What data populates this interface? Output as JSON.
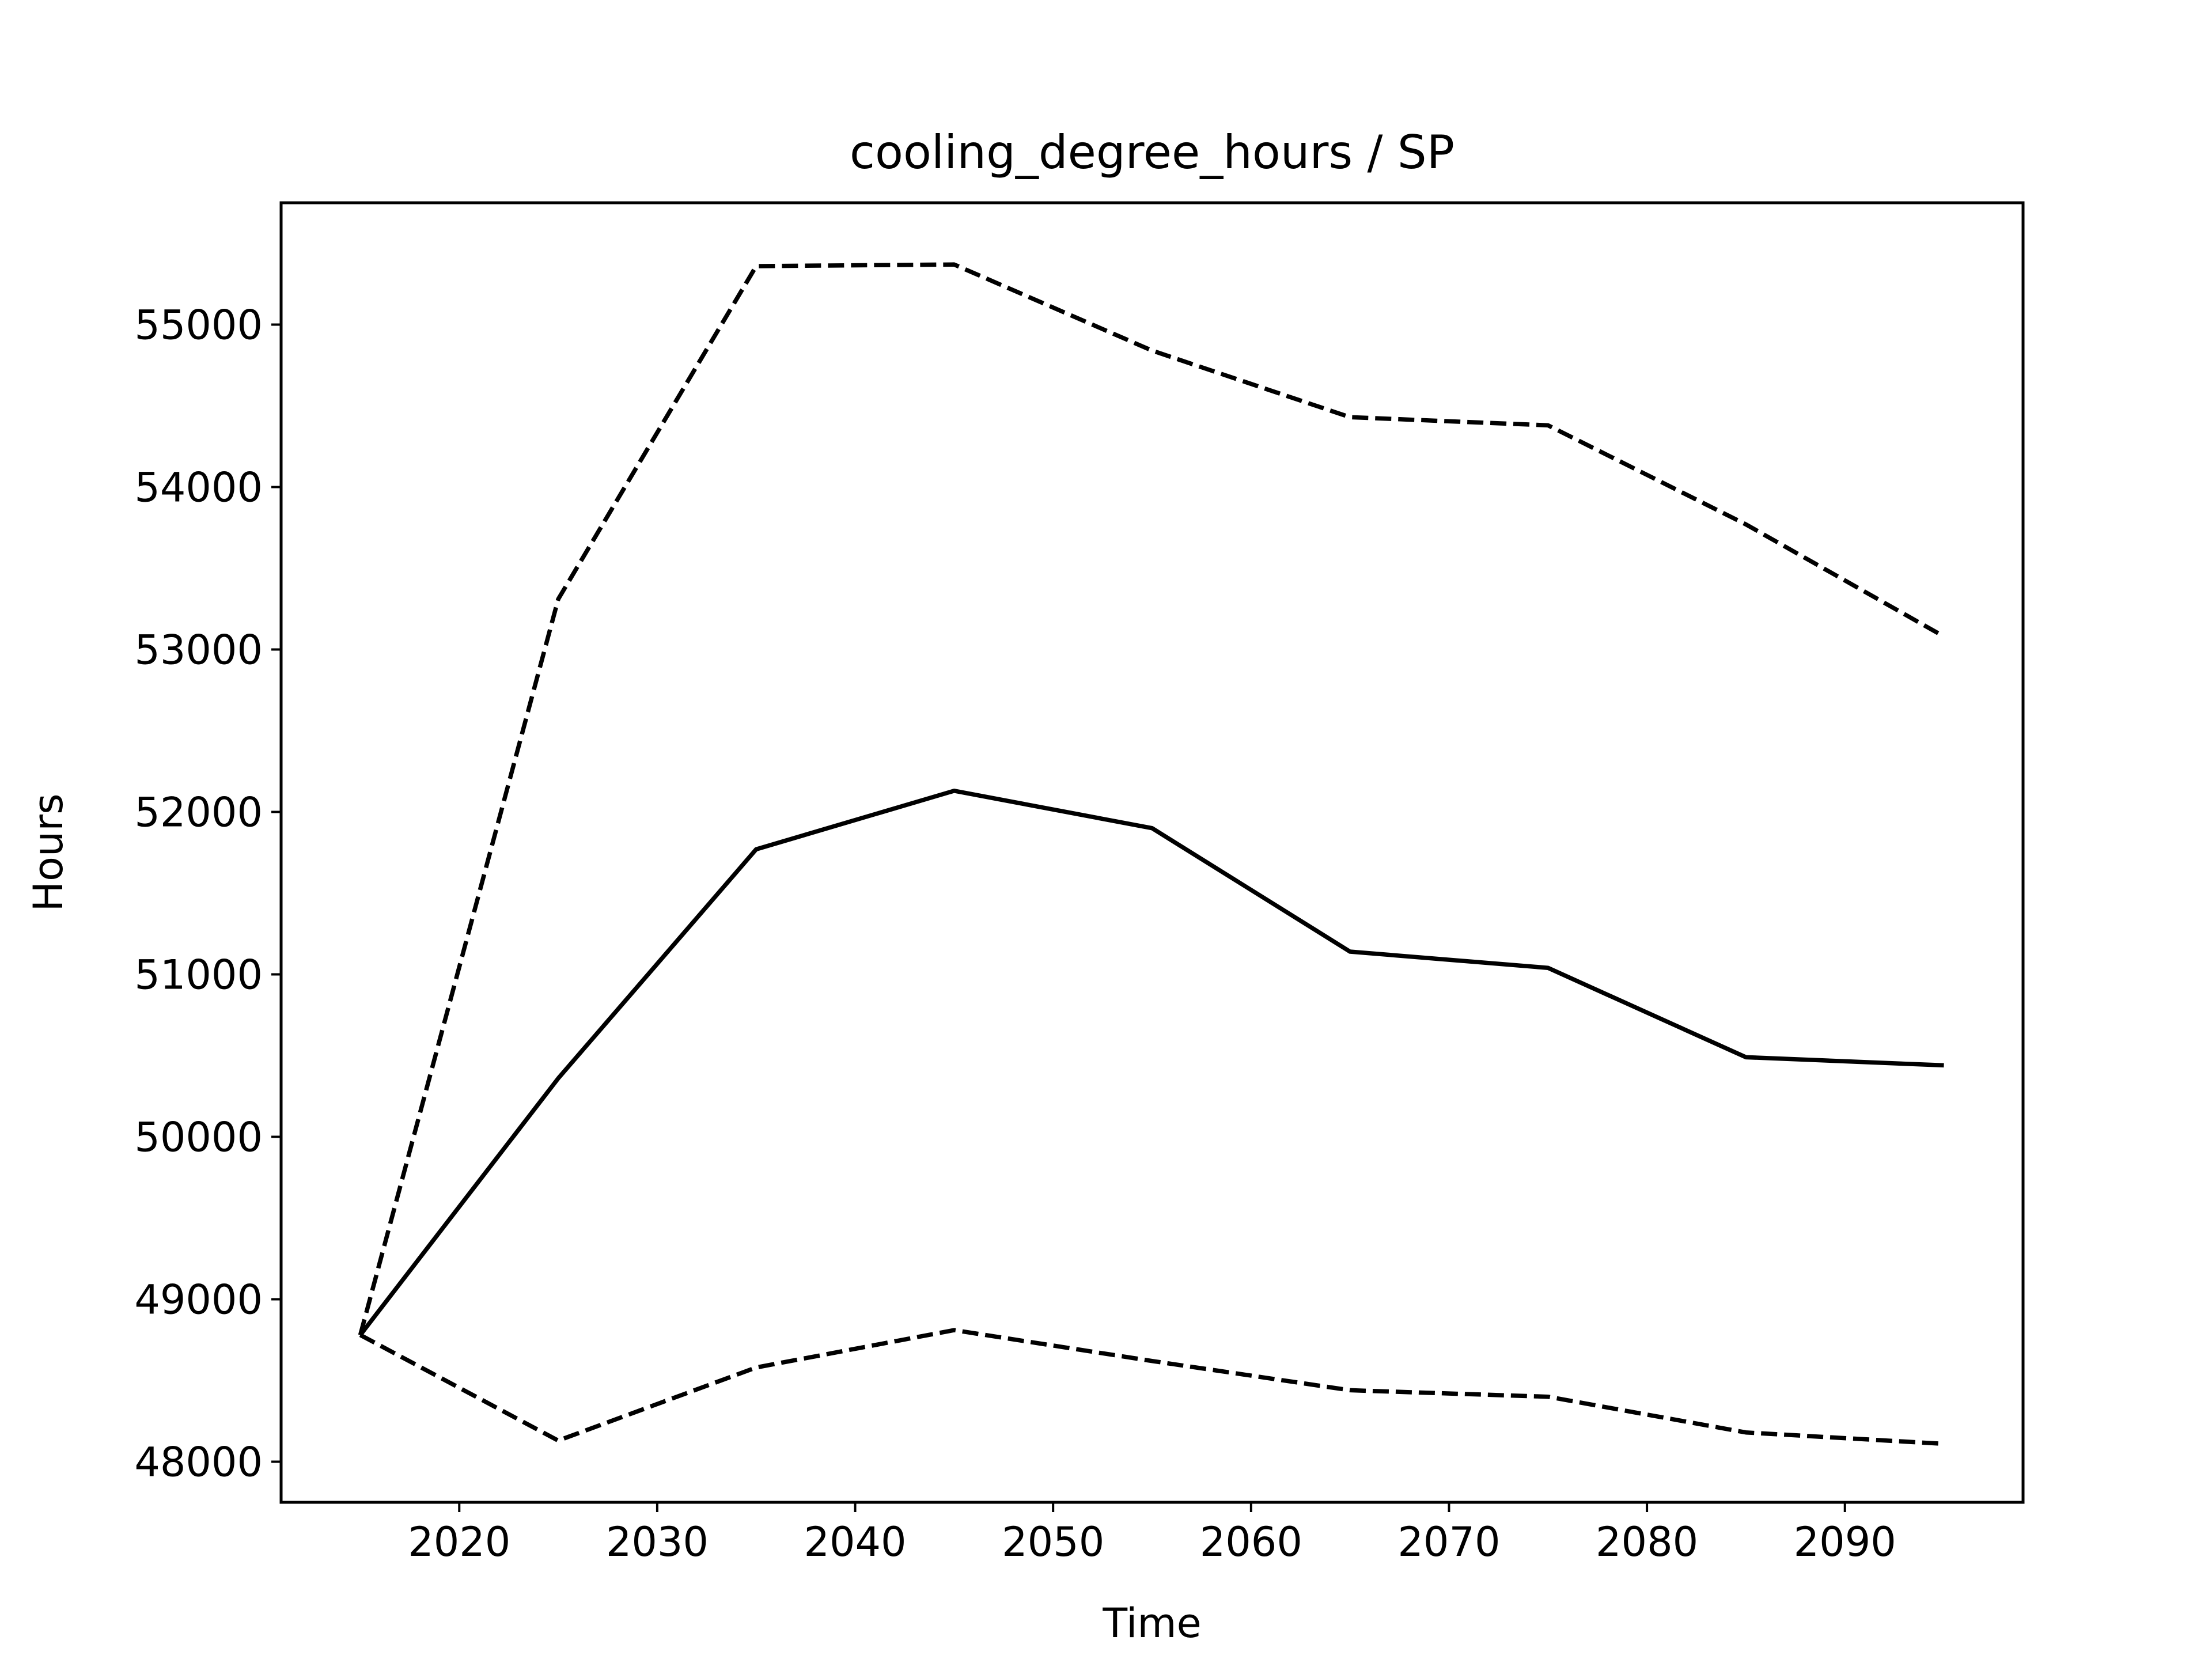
{
  "chart_data": {
    "type": "line",
    "title": "cooling_degree_hours / SP",
    "xlabel": "Time",
    "ylabel": "Hours",
    "x": [
      2015,
      2025,
      2035,
      2045,
      2055,
      2065,
      2075,
      2085,
      2095
    ],
    "xlim": [
      2011,
      2099
    ],
    "ylim": [
      47750,
      55750
    ],
    "xticks": [
      2020,
      2030,
      2040,
      2050,
      2060,
      2070,
      2080,
      2090
    ],
    "yticks": [
      48000,
      49000,
      50000,
      51000,
      52000,
      53000,
      54000,
      55000
    ],
    "grid": false,
    "series": [
      {
        "style": "solid",
        "color": "#000000",
        "values": [
          48780,
          50360,
          51770,
          52130,
          51900,
          51140,
          51040,
          50490,
          50440
        ]
      },
      {
        "style": "dashed",
        "color": "#000000",
        "values": [
          48780,
          53310,
          55360,
          55370,
          54840,
          54430,
          54380,
          53770,
          53080
        ]
      },
      {
        "style": "dashed",
        "color": "#000000",
        "values": [
          48780,
          48130,
          48580,
          48810,
          48620,
          48440,
          48400,
          48180,
          48110
        ]
      }
    ]
  }
}
